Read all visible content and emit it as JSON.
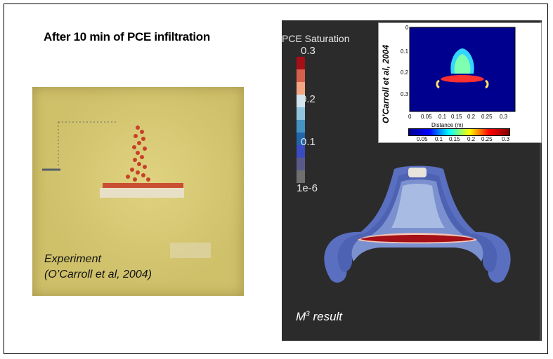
{
  "title": "After 10 min of PCE infiltration",
  "experiment": {
    "caption_line1": "Experiment",
    "caption_line2": "(O’Carroll et al, 2004)"
  },
  "simulation": {
    "legend_title": "PCE Saturation",
    "legend_ticks": [
      "0.3",
      "0.2",
      "0.1",
      "1e-6"
    ],
    "result_label": "M",
    "result_sup": "3",
    "result_suffix": " result"
  },
  "inset": {
    "ylabel": "O’Carroll et al, 2004",
    "y_ticks": [
      "0",
      "0.1",
      "0.2",
      "0.3"
    ],
    "x_ticks": [
      "0",
      "0.05",
      "0.1",
      "0.15",
      "0.2",
      "0.25",
      "0.3"
    ],
    "xlabel": "Distance (m)",
    "colorbar_ticks": [
      "0.05",
      "0.1",
      "0.15",
      "0.2",
      "0.25",
      "0.3"
    ]
  },
  "colors": {
    "sim_background": "#2b2b2b",
    "photo_background": "#cfc06a",
    "legend": [
      "#a50f15",
      "#d6604d",
      "#f4a582",
      "#d1e5f0",
      "#92c5de",
      "#4393c3",
      "#2166ac",
      "#3b4cc0",
      "#5a5a8a",
      "#6f6f6f"
    ]
  }
}
